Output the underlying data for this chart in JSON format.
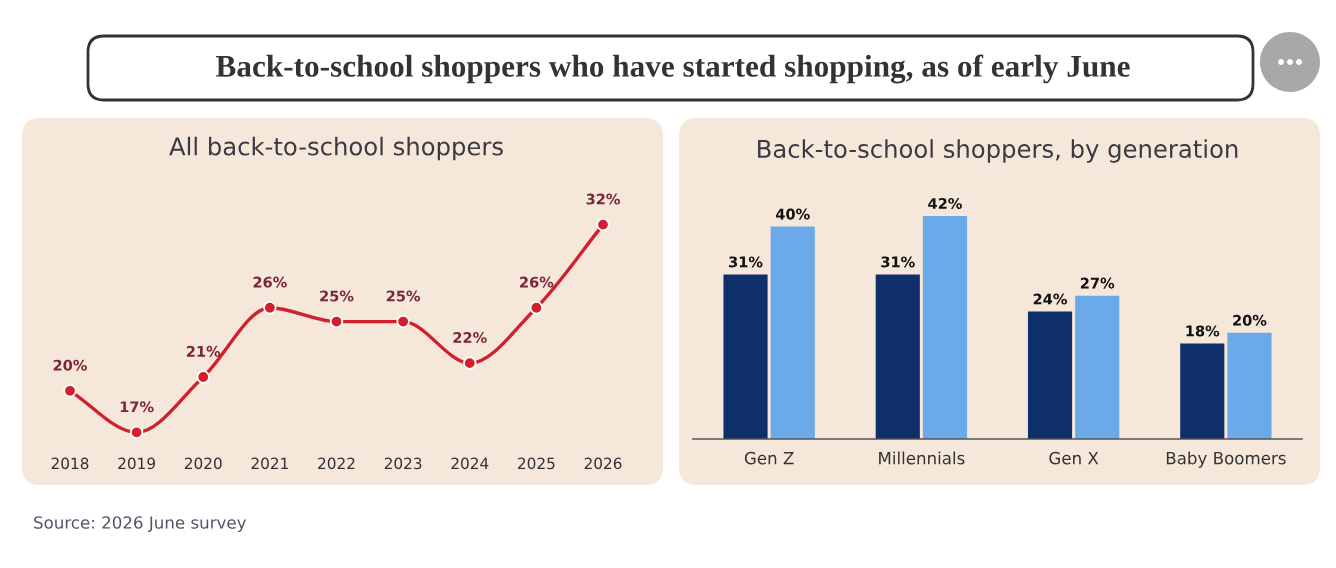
{
  "chart_data": [
    {
      "type": "other",
      "title": "Back-to-school shoppers who have started shopping, as of early June",
      "annotations": [
        "Source: 2026 June survey"
      ]
    },
    {
      "type": "line",
      "title": "All back-to-school shoppers",
      "categories": [
        "2018",
        "2019",
        "2020",
        "2021",
        "2022",
        "2023",
        "2024",
        "2025",
        "2026"
      ],
      "series": [
        {
          "color": "#d21f2f",
          "values": [
            20,
            17,
            21,
            26,
            25,
            25,
            22,
            26,
            32
          ],
          "value_labels": [
            "20%",
            "17%",
            "21%",
            "26%",
            "25%",
            "25%",
            "22%",
            "26%",
            "32%"
          ]
        }
      ],
      "marker": "circle",
      "tick_labels": "x"
    },
    {
      "type": "bar",
      "title": "Back-to-school shoppers, by generation",
      "categories": [
        "Gen Z",
        "Millennials",
        "Gen X",
        "Baby Boomers"
      ],
      "series": [
        {
          "color": "#0f2f6a",
          "values": [
            31,
            31,
            24,
            18
          ],
          "value_labels": [
            "31%",
            "31%",
            "24%",
            "18%"
          ]
        },
        {
          "color": "#6aaae8",
          "values": [
            40,
            42,
            27,
            20
          ],
          "value_labels": [
            "40%",
            "42%",
            "27%",
            "20%"
          ]
        }
      ],
      "tick_labels": "x"
    }
  ]
}
